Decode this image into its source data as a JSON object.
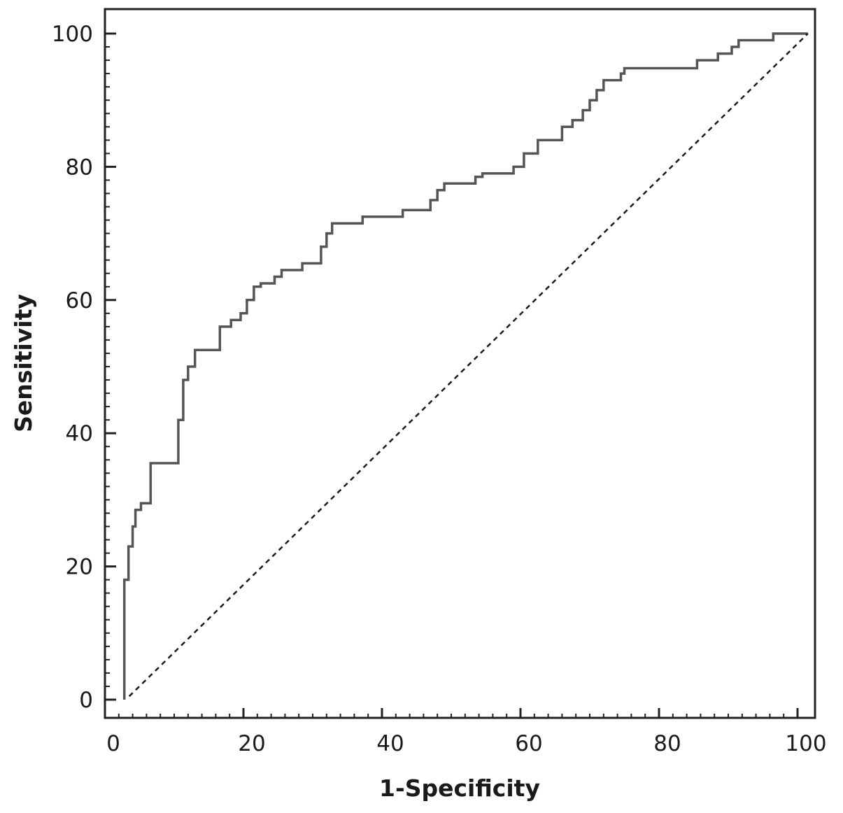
{
  "chart_data": {
    "type": "line",
    "title": "",
    "xlabel": "1-Specificity",
    "ylabel": "Sensitivity",
    "xlim": [
      0,
      100
    ],
    "ylim": [
      0,
      100
    ],
    "xticks": [
      0,
      20,
      40,
      60,
      80,
      100
    ],
    "yticks": [
      0,
      20,
      40,
      60,
      80,
      100
    ],
    "grid": false,
    "legend": "none",
    "series": [
      {
        "style": "solid-step",
        "color": "#555555",
        "points": [
          [
            2.8,
            0
          ],
          [
            2.8,
            18
          ],
          [
            3.4,
            18
          ],
          [
            3.4,
            23
          ],
          [
            4.0,
            23
          ],
          [
            4.0,
            26
          ],
          [
            4.4,
            26
          ],
          [
            4.4,
            28.5
          ],
          [
            5.2,
            28.5
          ],
          [
            5.2,
            29.5
          ],
          [
            6.6,
            29.5
          ],
          [
            6.6,
            35.5
          ],
          [
            10.6,
            35.5
          ],
          [
            10.6,
            42
          ],
          [
            11.3,
            42
          ],
          [
            11.3,
            48
          ],
          [
            12.0,
            48
          ],
          [
            12.0,
            50
          ],
          [
            13.0,
            50
          ],
          [
            13.0,
            52.5
          ],
          [
            16.6,
            52.5
          ],
          [
            16.6,
            56
          ],
          [
            18.2,
            56
          ],
          [
            18.2,
            57
          ],
          [
            19.6,
            57
          ],
          [
            19.6,
            58
          ],
          [
            20.5,
            58
          ],
          [
            20.5,
            60
          ],
          [
            21.5,
            60
          ],
          [
            21.5,
            62
          ],
          [
            22.5,
            62
          ],
          [
            22.5,
            62.5
          ],
          [
            24.5,
            62.5
          ],
          [
            24.5,
            63.5
          ],
          [
            25.5,
            63.5
          ],
          [
            25.5,
            64.5
          ],
          [
            28.5,
            64.5
          ],
          [
            28.5,
            65.5
          ],
          [
            31.2,
            65.5
          ],
          [
            31.2,
            68
          ],
          [
            32.0,
            68
          ],
          [
            32.0,
            70
          ],
          [
            32.8,
            70
          ],
          [
            32.8,
            71.5
          ],
          [
            37.2,
            71.5
          ],
          [
            37.2,
            72.5
          ],
          [
            43.0,
            72.5
          ],
          [
            43.0,
            73.5
          ],
          [
            47.0,
            73.5
          ],
          [
            47.0,
            75
          ],
          [
            48.0,
            75
          ],
          [
            48.0,
            76.5
          ],
          [
            49.0,
            76.5
          ],
          [
            49.0,
            77.5
          ],
          [
            53.5,
            77.5
          ],
          [
            53.5,
            78.5
          ],
          [
            54.5,
            78.5
          ],
          [
            54.5,
            79
          ],
          [
            59.0,
            79
          ],
          [
            59.0,
            80
          ],
          [
            60.5,
            80
          ],
          [
            60.5,
            82
          ],
          [
            62.5,
            82
          ],
          [
            62.5,
            84
          ],
          [
            66.0,
            84
          ],
          [
            66.0,
            86
          ],
          [
            67.5,
            86
          ],
          [
            67.5,
            87
          ],
          [
            69.0,
            87
          ],
          [
            69.0,
            88.5
          ],
          [
            70.0,
            88.5
          ],
          [
            70.0,
            90
          ],
          [
            71.0,
            90
          ],
          [
            71.0,
            91.5
          ],
          [
            72.0,
            91.5
          ],
          [
            72.0,
            93
          ],
          [
            74.5,
            93
          ],
          [
            74.5,
            94
          ],
          [
            75.0,
            94
          ],
          [
            75.0,
            94.8
          ],
          [
            85.5,
            94.8
          ],
          [
            85.5,
            96
          ],
          [
            88.5,
            96
          ],
          [
            88.5,
            97
          ],
          [
            90.5,
            97
          ],
          [
            90.5,
            98
          ],
          [
            91.5,
            98
          ],
          [
            91.5,
            99
          ],
          [
            96.5,
            99
          ],
          [
            96.5,
            100
          ],
          [
            101.5,
            100
          ]
        ]
      },
      {
        "style": "dashed",
        "color": "#1a1a1a",
        "points": [
          [
            3.5,
            0.5
          ],
          [
            101.5,
            100
          ]
        ]
      }
    ]
  }
}
